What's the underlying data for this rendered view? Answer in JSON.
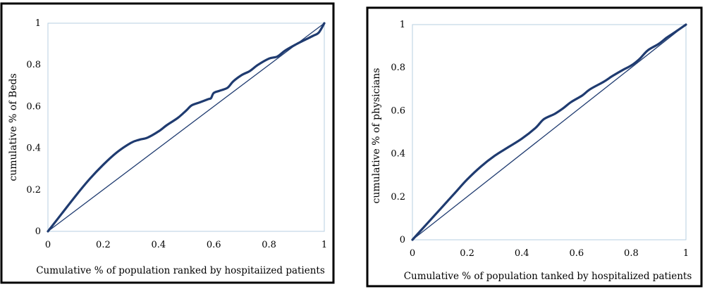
{
  "chart_data": [
    {
      "type": "line",
      "title": "",
      "xlabel": "Cumulative % of population ranked by hospitaiized patients",
      "ylabel": "cumulative % of Beds",
      "xlim": [
        0,
        1
      ],
      "ylim": [
        0,
        1
      ],
      "xticks": [
        "0",
        "0.2",
        "0.4",
        "0.6",
        "0.8",
        "1"
      ],
      "yticks": [
        "0",
        "0.2",
        "0.4",
        "0.6",
        "0.8",
        "1"
      ],
      "grid": false,
      "series": [
        {
          "role": "concentration-curve",
          "x": [
            0,
            0.05,
            0.1,
            0.15,
            0.2,
            0.25,
            0.3,
            0.33,
            0.36,
            0.4,
            0.43,
            0.47,
            0.5,
            0.52,
            0.55,
            0.58,
            0.59,
            0.6,
            0.62,
            0.65,
            0.67,
            0.7,
            0.73,
            0.76,
            0.8,
            0.83,
            0.86,
            0.9,
            0.93,
            0.96,
            0.98,
            1.0
          ],
          "y": [
            0,
            0.085,
            0.17,
            0.25,
            0.32,
            0.38,
            0.425,
            0.44,
            0.45,
            0.48,
            0.51,
            0.545,
            0.58,
            0.605,
            0.62,
            0.635,
            0.64,
            0.665,
            0.675,
            0.69,
            0.72,
            0.75,
            0.77,
            0.8,
            0.83,
            0.84,
            0.87,
            0.9,
            0.92,
            0.94,
            0.955,
            1.0
          ]
        },
        {
          "role": "line-of-equality",
          "x": [
            0,
            1
          ],
          "y": [
            0,
            1
          ]
        }
      ]
    },
    {
      "type": "line",
      "title": "",
      "xlabel": "Cumulative % of population tanked by hospitalized patients",
      "ylabel": "cumulative % of physicians",
      "xlim": [
        0,
        1
      ],
      "ylim": [
        0,
        1
      ],
      "xticks": [
        "0",
        "0.2",
        "0.4",
        "0.6",
        "0.8",
        "1"
      ],
      "yticks": [
        "0",
        "0.2",
        "0.4",
        "0.6",
        "0.8",
        "1"
      ],
      "grid": false,
      "series": [
        {
          "role": "concentration-curve",
          "x": [
            0,
            0.05,
            0.1,
            0.15,
            0.2,
            0.25,
            0.3,
            0.35,
            0.4,
            0.45,
            0.48,
            0.52,
            0.55,
            0.58,
            0.62,
            0.65,
            0.7,
            0.73,
            0.77,
            0.8,
            0.83,
            0.86,
            0.9,
            0.93,
            0.96,
            1.0
          ],
          "y": [
            0,
            0.07,
            0.14,
            0.21,
            0.28,
            0.34,
            0.39,
            0.43,
            0.47,
            0.52,
            0.56,
            0.585,
            0.61,
            0.64,
            0.67,
            0.7,
            0.735,
            0.76,
            0.79,
            0.81,
            0.84,
            0.88,
            0.91,
            0.94,
            0.965,
            1.0
          ]
        },
        {
          "role": "line-of-equality",
          "x": [
            0,
            1
          ],
          "y": [
            0,
            1
          ]
        }
      ]
    }
  ],
  "colors": {
    "curve": "#1f3b70",
    "equality": "#1f3b70",
    "plot_border": "#b7cfe0",
    "frame": "#000000"
  }
}
